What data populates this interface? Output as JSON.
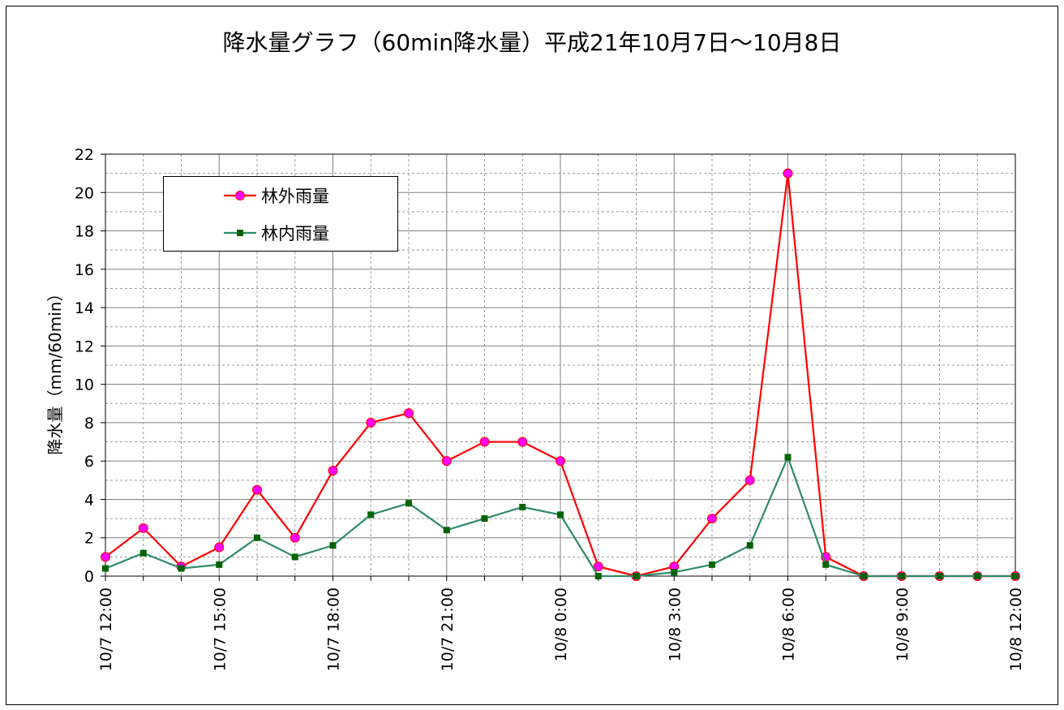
{
  "chart_data": {
    "type": "line",
    "title": "降水量グラフ（60min降水量）平成21年10月7日～10月8日",
    "xlabel": "",
    "ylabel": "降水量（mm/60min）",
    "ylim": [
      0,
      22
    ],
    "yticks": [
      0,
      2,
      4,
      6,
      8,
      10,
      12,
      14,
      16,
      18,
      20,
      22
    ],
    "x": [
      "10/7 12:00",
      "10/7 13:00",
      "10/7 14:00",
      "10/7 15:00",
      "10/7 16:00",
      "10/7 17:00",
      "10/7 18:00",
      "10/7 19:00",
      "10/7 20:00",
      "10/7 21:00",
      "10/7 22:00",
      "10/7 23:00",
      "10/8 0:00",
      "10/8 1:00",
      "10/8 2:00",
      "10/8 3:00",
      "10/8 4:00",
      "10/8 5:00",
      "10/8 6:00",
      "10/8 7:00",
      "10/8 8:00",
      "10/8 9:00",
      "10/8 10:00",
      "10/8 11:00",
      "10/8 12:00"
    ],
    "xtick_labels": [
      "10/7 12:00",
      "10/7 15:00",
      "10/7 18:00",
      "10/7 21:00",
      "10/8 0:00",
      "10/8 3:00",
      "10/8 6:00",
      "10/8 9:00",
      "10/8 12:00"
    ],
    "grid": true,
    "legend_position": "top-left",
    "series": [
      {
        "name": "林外雨量",
        "color": "#ff0000",
        "marker_color": "#ff00ff",
        "marker": "circle",
        "values": [
          1,
          2.5,
          0.5,
          1.5,
          4.5,
          2,
          5.5,
          8,
          8.5,
          6,
          7,
          7,
          6,
          0.5,
          0,
          0.5,
          3,
          5,
          21,
          1,
          0,
          0,
          0,
          0,
          0
        ]
      },
      {
        "name": "林内雨量",
        "color": "#2e8b6b",
        "marker_color": "#006400",
        "marker": "square",
        "values": [
          0.4,
          1.2,
          0.4,
          0.6,
          2,
          1,
          1.6,
          3.2,
          3.8,
          2.4,
          3,
          3.6,
          3.2,
          0,
          0,
          0.2,
          0.6,
          1.6,
          6.2,
          0.6,
          0,
          0,
          0,
          0,
          0
        ]
      }
    ]
  }
}
